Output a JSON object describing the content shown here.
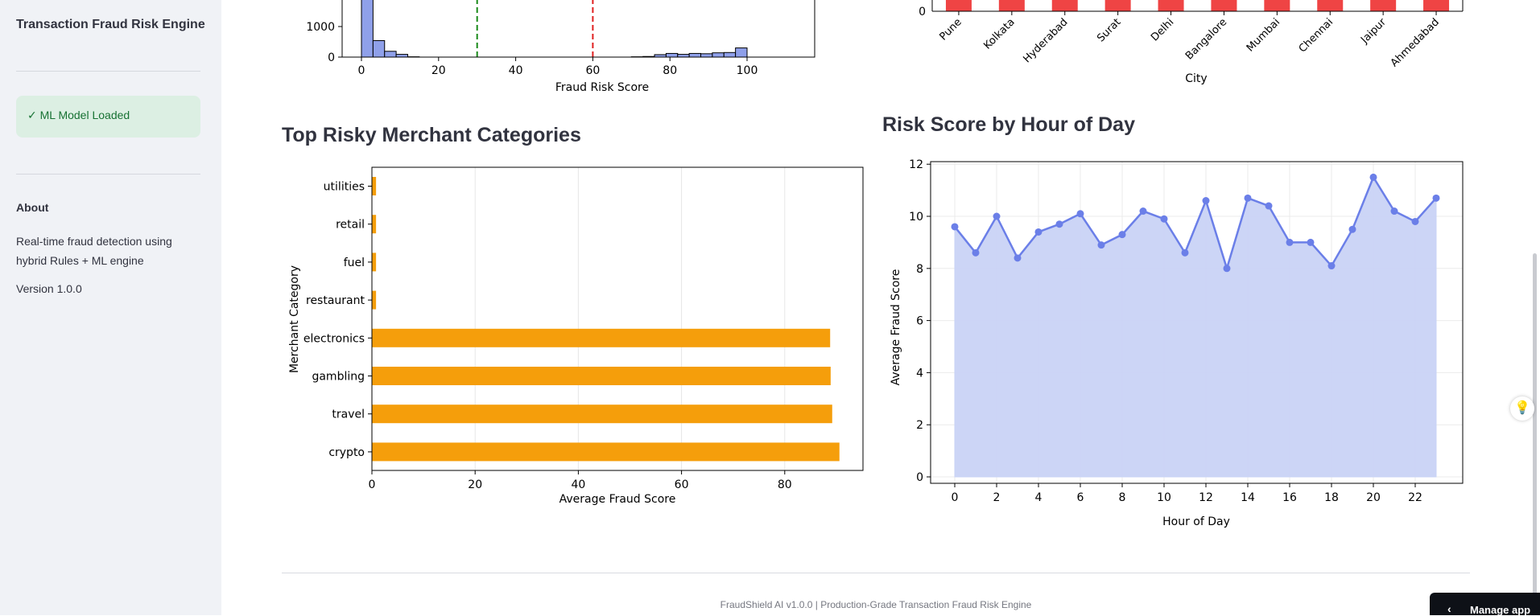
{
  "sidebar": {
    "title": "Transaction Fraud Risk Engine",
    "status": "✓ ML Model Loaded",
    "about_heading": "About",
    "about_text": "Real-time fraud detection using hybrid Rules + ML engine",
    "version": "Version 1.0.0"
  },
  "colors": {
    "hist_bar": "#8fa0ea",
    "threshold_low": "#1a8a1a",
    "threshold_high": "#e02020",
    "city_bar": "#ef4444",
    "merchant_bar": "#f59e0b",
    "line": "#6b7fe8",
    "area": "#c9d3f6"
  },
  "histogram": {
    "xlabel": "Fraud Risk Score",
    "xticks": [
      "0",
      "20",
      "40",
      "60",
      "80",
      "100"
    ],
    "yticks": [
      "0",
      "1000"
    ],
    "bins": [
      {
        "x0": 0,
        "x1": 3,
        "count": 2000
      },
      {
        "x0": 3,
        "x1": 6,
        "count": 540
      },
      {
        "x0": 6,
        "x1": 9,
        "count": 190
      },
      {
        "x0": 9,
        "x1": 12,
        "count": 90
      },
      {
        "x0": 12,
        "x1": 15,
        "count": 10
      },
      {
        "x0": 70,
        "x1": 73,
        "count": 10
      },
      {
        "x0": 73,
        "x1": 76,
        "count": 20
      },
      {
        "x0": 76,
        "x1": 79,
        "count": 80
      },
      {
        "x0": 79,
        "x1": 82,
        "count": 120
      },
      {
        "x0": 82,
        "x1": 85,
        "count": 90
      },
      {
        "x0": 85,
        "x1": 88,
        "count": 120
      },
      {
        "x0": 88,
        "x1": 91,
        "count": 110
      },
      {
        "x0": 91,
        "x1": 94,
        "count": 140
      },
      {
        "x0": 94,
        "x1": 97,
        "count": 150
      },
      {
        "x0": 97,
        "x1": 100,
        "count": 300
      }
    ],
    "thresholds": [
      30,
      60
    ]
  },
  "city_chart": {
    "xlabel": "City",
    "ytick0": "0",
    "cities": [
      "Pune",
      "Kolkata",
      "Hyderabad",
      "Surat",
      "Delhi",
      "Bangalore",
      "Mumbai",
      "Chennai",
      "Jaipur",
      "Ahmedabad"
    ]
  },
  "merchant_chart": {
    "heading": "Top Risky Merchant Categories",
    "xlabel": "Average Fraud Score",
    "ylabel": "Merchant Category",
    "xticks": [
      "0",
      "20",
      "40",
      "60",
      "80"
    ]
  },
  "hour_chart": {
    "heading": "Risk Score by Hour of Day",
    "xlabel": "Hour of Day",
    "ylabel": "Average Fraud Score",
    "yticks": [
      "0",
      "2",
      "4",
      "6",
      "8",
      "10",
      "12"
    ],
    "xticks": [
      "0",
      "2",
      "4",
      "6",
      "8",
      "10",
      "12",
      "14",
      "16",
      "18",
      "20",
      "22"
    ]
  },
  "chart_data": [
    {
      "type": "bar",
      "title": "",
      "xlabel": "Fraud Risk Score",
      "ylabel": "",
      "note": "histogram with threshold lines",
      "x_bins": [
        "0-3",
        "3-6",
        "6-9",
        "9-12",
        "12-15",
        "70-73",
        "73-76",
        "76-79",
        "79-82",
        "82-85",
        "85-88",
        "88-91",
        "91-94",
        "94-97",
        "97-100"
      ],
      "values": [
        2000,
        540,
        190,
        90,
        10,
        10,
        20,
        80,
        120,
        90,
        120,
        110,
        140,
        150,
        300
      ],
      "threshold_lines": [
        30,
        60
      ]
    },
    {
      "type": "bar",
      "xlabel": "City",
      "categories": [
        "Pune",
        "Kolkata",
        "Hyderabad",
        "Surat",
        "Delhi",
        "Bangalore",
        "Mumbai",
        "Chennai",
        "Jaipur",
        "Ahmedabad"
      ]
    },
    {
      "type": "bar",
      "orientation": "horizontal",
      "xlabel": "Average Fraud Score",
      "ylabel": "Merchant Category",
      "categories": [
        "utilities",
        "retail",
        "fuel",
        "restaurant",
        "electronics",
        "gambling",
        "travel",
        "crypto"
      ],
      "values": [
        0.8,
        0.8,
        0.8,
        0.8,
        88.8,
        88.9,
        89.2,
        90.6
      ],
      "xlim": [
        0,
        95
      ]
    },
    {
      "type": "area",
      "xlabel": "Hour of Day",
      "ylabel": "Average Fraud Score",
      "x": [
        0,
        1,
        2,
        3,
        4,
        5,
        6,
        7,
        8,
        9,
        10,
        11,
        12,
        13,
        14,
        15,
        16,
        17,
        18,
        19,
        20,
        21,
        22,
        23
      ],
      "values": [
        9.6,
        8.6,
        10.0,
        8.4,
        9.4,
        9.7,
        10.1,
        8.9,
        9.3,
        10.2,
        9.9,
        8.6,
        10.6,
        8.0,
        10.7,
        10.4,
        9.0,
        9.0,
        8.1,
        9.5,
        11.5,
        10.2,
        9.8,
        10.7
      ],
      "ylim": [
        -0.5,
        12.2
      ],
      "grid": true
    }
  ],
  "footer": {
    "text": "FraudShield AI v1.0.0 | Production-Grade Transaction Fraud Risk Engine",
    "manage_label": "Manage app"
  }
}
